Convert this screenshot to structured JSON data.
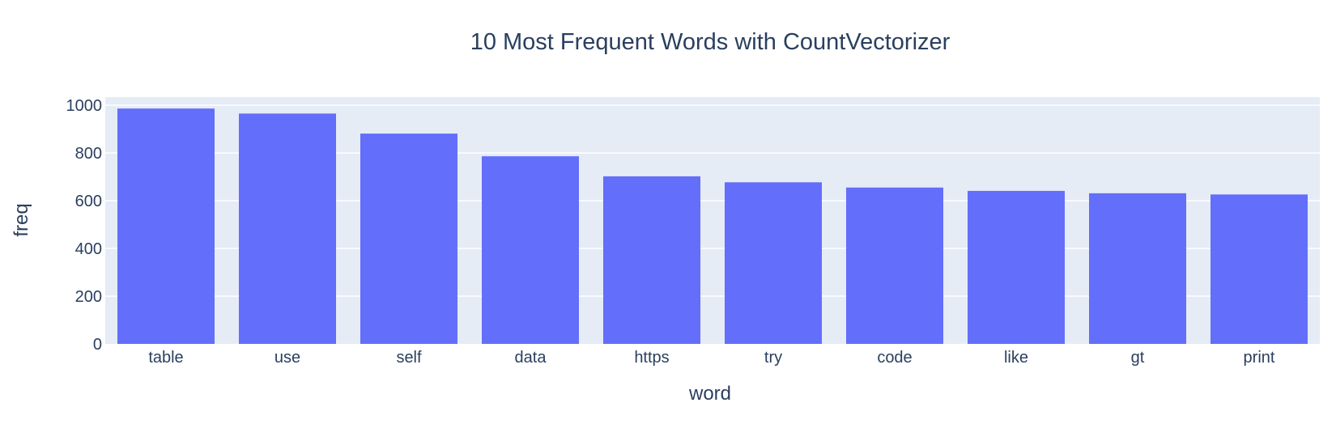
{
  "chart_data": {
    "type": "bar",
    "title": "10 Most Frequent Words with CountVectorizer",
    "xlabel": "word",
    "ylabel": "freq",
    "categories": [
      "table",
      "use",
      "self",
      "data",
      "https",
      "try",
      "code",
      "like",
      "gt",
      "print"
    ],
    "values": [
      986,
      965,
      881,
      786,
      702,
      677,
      655,
      641,
      631,
      626
    ],
    "ylim": [
      0,
      1000
    ],
    "yticks": [
      0,
      200,
      400,
      600,
      800,
      1000
    ],
    "grid": true,
    "bar_color": "#636efa",
    "plot_background": "#e5ecf6",
    "text_color": "#2a3f5f"
  }
}
